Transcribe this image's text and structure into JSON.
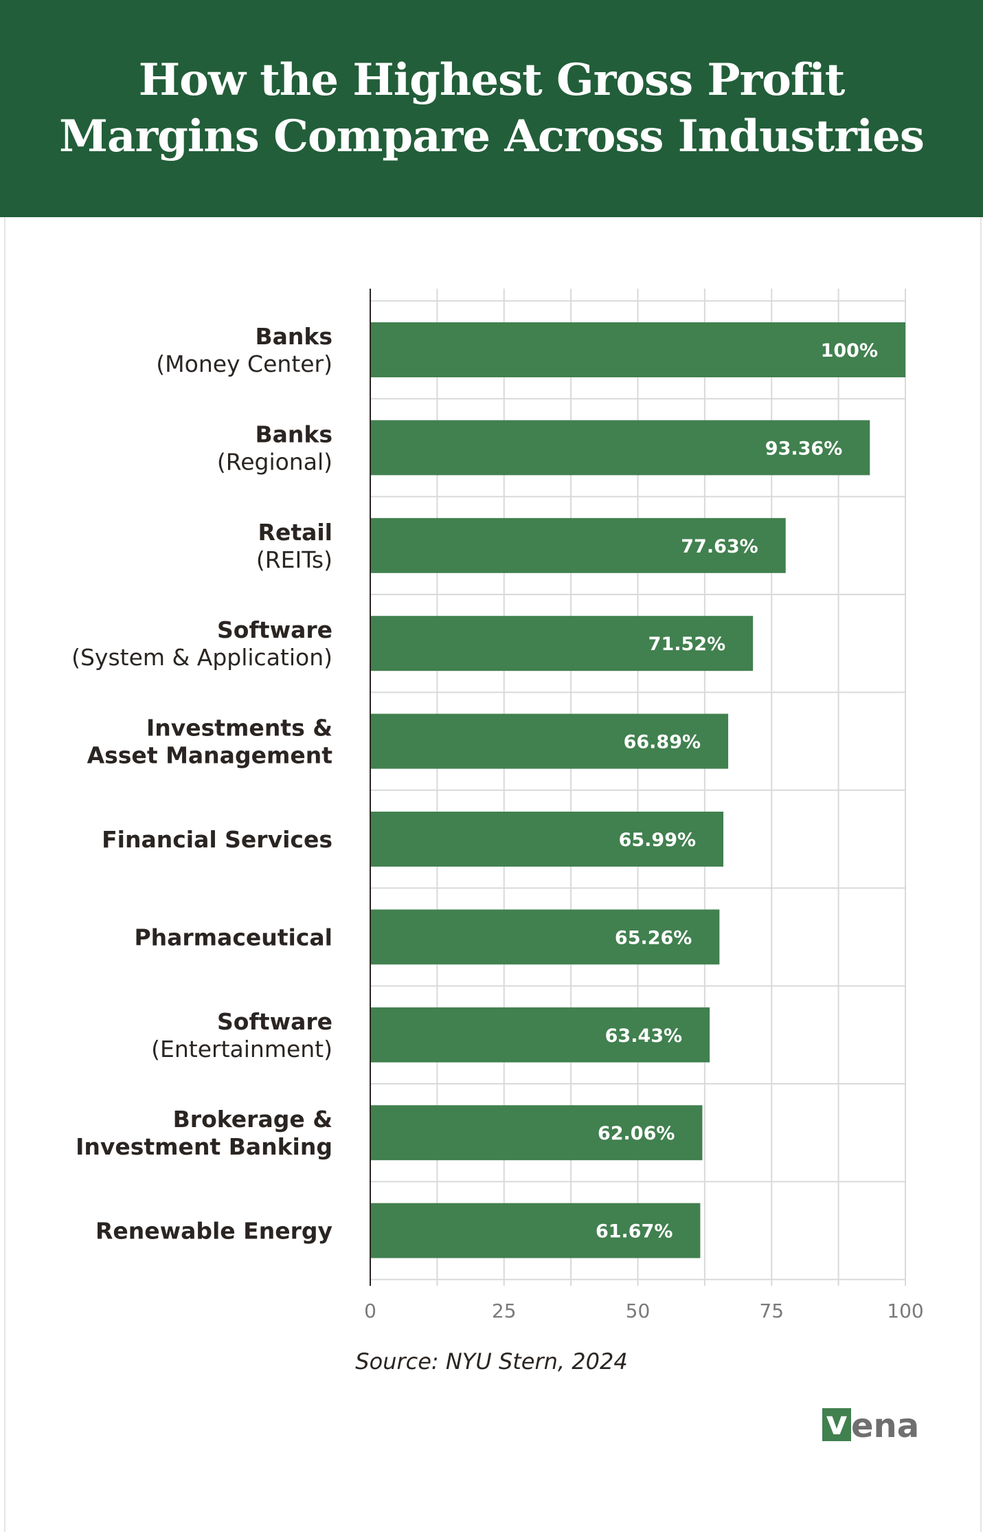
{
  "title_line1": "How the Highest Gross Profit",
  "title_line2": "Margins Compare Across Industries",
  "source": "Source: NYU Stern, 2024",
  "logo": {
    "v": "v",
    "rest": "ena"
  },
  "colors": {
    "header": "#225e39",
    "bar": "#41804f",
    "grid": "#d9d9d9"
  },
  "chart_data": {
    "type": "bar",
    "orientation": "horizontal",
    "categories": [
      {
        "main": "Banks",
        "sub": "(Money Center)"
      },
      {
        "main": "Banks",
        "sub": "(Regional)"
      },
      {
        "main": "Retail",
        "sub": "(REITs)"
      },
      {
        "main": "Software",
        "sub": "(System & Application)"
      },
      {
        "main": "Investments &",
        "sub2": "Asset Management"
      },
      {
        "main": "Financial Services"
      },
      {
        "main": "Pharmaceutical"
      },
      {
        "main": "Software",
        "sub": "(Entertainment)"
      },
      {
        "main": "Brokerage &",
        "sub2": "Investment Banking"
      },
      {
        "main": "Renewable Energy"
      }
    ],
    "values": [
      100,
      93.36,
      77.63,
      71.52,
      66.89,
      65.99,
      65.26,
      63.43,
      62.06,
      61.67
    ],
    "value_labels": [
      "100%",
      "93.36%",
      "77.63%",
      "71.52%",
      "66.89%",
      "65.99%",
      "65.26%",
      "63.43%",
      "62.06%",
      "61.67%"
    ],
    "xlim": [
      0,
      100
    ],
    "xticks": [
      "0",
      "25",
      "50",
      "75",
      "100"
    ],
    "xtick_values": [
      0,
      25,
      50,
      75,
      100
    ],
    "grid": true
  }
}
